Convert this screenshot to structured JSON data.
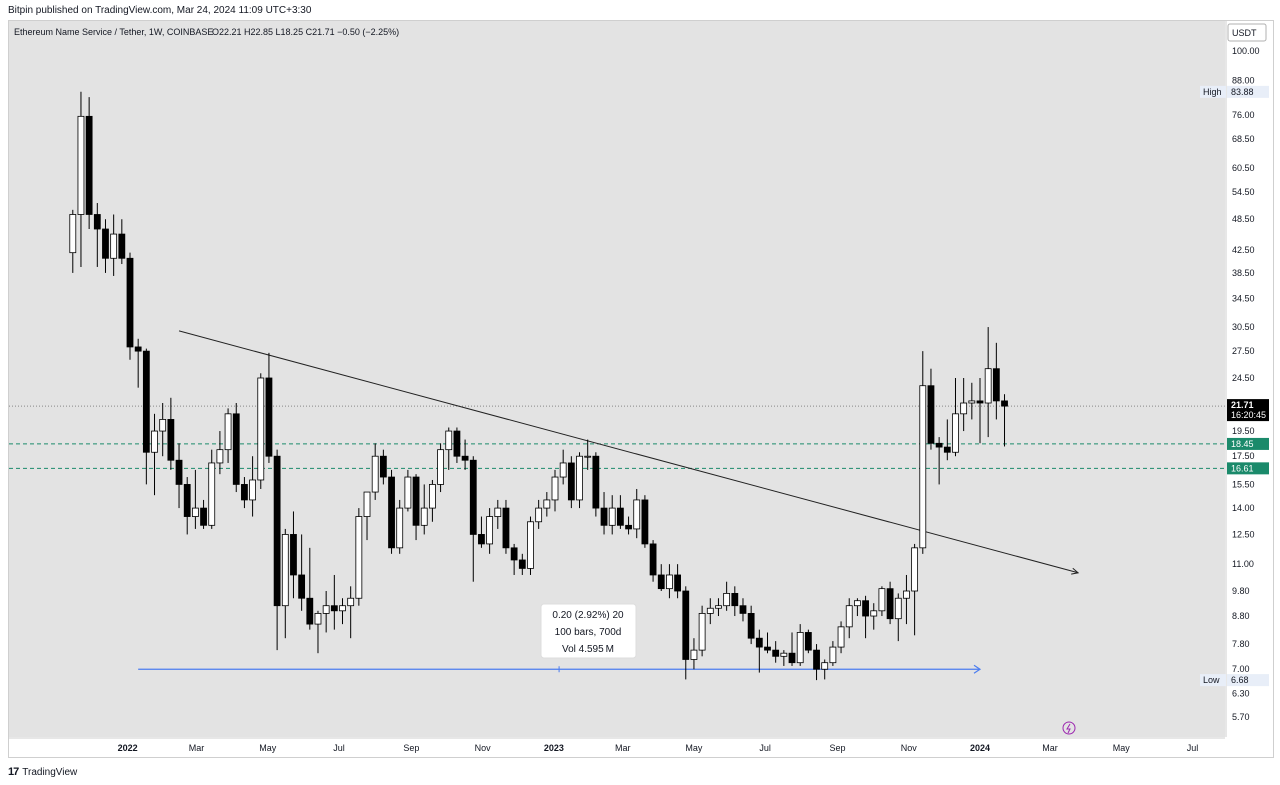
{
  "header": {
    "published": "Bitpin published on TradingView.com, Mar 24, 2024 11:09 UTC+3:30"
  },
  "footer": {
    "brand": "TradingView",
    "logo": "tv-logo-icon"
  },
  "chart_data": {
    "type": "candlestick",
    "title": "Ethereum Name Service / Tether, 1W, COINBASE",
    "ohlc_legend": "O22.21 H22.85 L18.25 C21.71 −0.50 (−2.25%)",
    "currency_label": "USDT",
    "y_scale": "log",
    "ylim": [
      5.2,
      110
    ],
    "y_ticks": [
      "100.00",
      "88.00",
      "76.00",
      "68.50",
      "60.50",
      "54.50",
      "48.50",
      "42.50",
      "38.50",
      "34.50",
      "30.50",
      "27.50",
      "24.50",
      "19.50",
      "17.50",
      "15.50",
      "14.00",
      "12.50",
      "11.00",
      "9.80",
      "8.80",
      "7.80",
      "7.00",
      "6.30",
      "5.70"
    ],
    "x_ticks": [
      "2022",
      "Mar",
      "May",
      "Jul",
      "Sep",
      "Nov",
      "2023",
      "Mar",
      "May",
      "Jul",
      "Sep",
      "Nov",
      "2024",
      "Mar",
      "May",
      "Jul"
    ],
    "x_tick_bold": [
      "2022",
      "2023",
      "2024"
    ],
    "price_labels": [
      {
        "kind": "high",
        "label": "High",
        "value": "83.88",
        "bg": "#e8eef8",
        "color": "#131722"
      },
      {
        "kind": "current",
        "value": "21.71",
        "sub": "16:20:45",
        "bg": "#000000",
        "color": "#ffffff"
      },
      {
        "kind": "level",
        "value": "18.45",
        "bg": "#1b8a6b",
        "color": "#ffffff"
      },
      {
        "kind": "level",
        "value": "16.61",
        "bg": "#1b8a6b",
        "color": "#ffffff"
      },
      {
        "kind": "low",
        "label": "Low",
        "value": "6.68",
        "bg": "#e8eef8",
        "color": "#131722"
      }
    ],
    "levels": [
      {
        "price": 21.71,
        "style": "dotted",
        "color": "#888888"
      },
      {
        "price": 18.45,
        "style": "dashed",
        "color": "#1b8a6b"
      },
      {
        "price": 16.61,
        "style": "dashed",
        "color": "#1b8a6b"
      }
    ],
    "candles": [
      {
        "o": 42.0,
        "h": 50.5,
        "l": 38.5,
        "c": 49.5
      },
      {
        "o": 49.5,
        "h": 83.9,
        "l": 39.5,
        "c": 75.5
      },
      {
        "o": 75.5,
        "h": 82.0,
        "l": 46.5,
        "c": 49.5
      },
      {
        "o": 49.5,
        "h": 52.0,
        "l": 39.5,
        "c": 46.5
      },
      {
        "o": 46.5,
        "h": 48.5,
        "l": 38.5,
        "c": 41.0
      },
      {
        "o": 41.0,
        "h": 49.5,
        "l": 38.0,
        "c": 45.5
      },
      {
        "o": 45.5,
        "h": 48.5,
        "l": 40.0,
        "c": 41.0
      },
      {
        "o": 41.0,
        "h": 42.0,
        "l": 26.5,
        "c": 28.0
      },
      {
        "o": 28.0,
        "h": 29.0,
        "l": 23.5,
        "c": 27.5
      },
      {
        "o": 27.5,
        "h": 27.8,
        "l": 15.5,
        "c": 17.8
      },
      {
        "o": 17.8,
        "h": 21.0,
        "l": 14.8,
        "c": 19.5
      },
      {
        "o": 19.5,
        "h": 22.0,
        "l": 17.5,
        "c": 20.5
      },
      {
        "o": 20.5,
        "h": 22.5,
        "l": 16.5,
        "c": 17.2
      },
      {
        "o": 17.2,
        "h": 18.5,
        "l": 14.0,
        "c": 15.5
      },
      {
        "o": 15.5,
        "h": 16.0,
        "l": 12.5,
        "c": 13.5
      },
      {
        "o": 13.5,
        "h": 16.5,
        "l": 12.8,
        "c": 14.0
      },
      {
        "o": 14.0,
        "h": 14.5,
        "l": 12.8,
        "c": 13.0
      },
      {
        "o": 13.0,
        "h": 18.0,
        "l": 12.8,
        "c": 17.0
      },
      {
        "o": 17.0,
        "h": 19.5,
        "l": 16.2,
        "c": 18.0
      },
      {
        "o": 18.0,
        "h": 21.5,
        "l": 17.0,
        "c": 21.0
      },
      {
        "o": 21.0,
        "h": 22.0,
        "l": 15.0,
        "c": 15.5
      },
      {
        "o": 15.5,
        "h": 16.0,
        "l": 14.0,
        "c": 14.5
      },
      {
        "o": 14.5,
        "h": 17.5,
        "l": 13.5,
        "c": 15.8
      },
      {
        "o": 15.8,
        "h": 25.0,
        "l": 15.2,
        "c": 24.5
      },
      {
        "o": 24.5,
        "h": 27.3,
        "l": 17.0,
        "c": 17.5
      },
      {
        "o": 17.5,
        "h": 18.0,
        "l": 7.6,
        "c": 9.2
      },
      {
        "o": 9.2,
        "h": 12.8,
        "l": 8.0,
        "c": 12.5
      },
      {
        "o": 12.5,
        "h": 13.8,
        "l": 9.5,
        "c": 10.5
      },
      {
        "o": 10.5,
        "h": 12.5,
        "l": 9.0,
        "c": 9.5
      },
      {
        "o": 9.5,
        "h": 11.8,
        "l": 8.3,
        "c": 8.5
      },
      {
        "o": 8.5,
        "h": 9.0,
        "l": 7.5,
        "c": 8.9
      },
      {
        "o": 8.9,
        "h": 9.8,
        "l": 8.2,
        "c": 9.2
      },
      {
        "o": 9.2,
        "h": 10.5,
        "l": 8.3,
        "c": 9.0
      },
      {
        "o": 9.0,
        "h": 9.5,
        "l": 8.5,
        "c": 9.2
      },
      {
        "o": 9.2,
        "h": 10.0,
        "l": 8.0,
        "c": 9.5
      },
      {
        "o": 9.5,
        "h": 14.0,
        "l": 9.2,
        "c": 13.5
      },
      {
        "o": 13.5,
        "h": 15.0,
        "l": 12.2,
        "c": 15.0
      },
      {
        "o": 15.0,
        "h": 18.5,
        "l": 14.5,
        "c": 17.5
      },
      {
        "o": 17.5,
        "h": 18.0,
        "l": 15.5,
        "c": 16.0
      },
      {
        "o": 16.0,
        "h": 16.5,
        "l": 11.5,
        "c": 11.8
      },
      {
        "o": 11.8,
        "h": 14.5,
        "l": 11.5,
        "c": 14.0
      },
      {
        "o": 14.0,
        "h": 16.5,
        "l": 13.8,
        "c": 16.0
      },
      {
        "o": 16.0,
        "h": 16.2,
        "l": 12.2,
        "c": 13.0
      },
      {
        "o": 13.0,
        "h": 15.5,
        "l": 12.5,
        "c": 14.0
      },
      {
        "o": 14.0,
        "h": 15.8,
        "l": 13.2,
        "c": 15.5
      },
      {
        "o": 15.5,
        "h": 18.5,
        "l": 15.0,
        "c": 18.0
      },
      {
        "o": 18.0,
        "h": 19.8,
        "l": 16.5,
        "c": 19.5
      },
      {
        "o": 19.5,
        "h": 19.8,
        "l": 17.0,
        "c": 17.5
      },
      {
        "o": 17.5,
        "h": 18.8,
        "l": 16.5,
        "c": 17.2
      },
      {
        "o": 17.2,
        "h": 17.5,
        "l": 10.2,
        "c": 12.5
      },
      {
        "o": 12.5,
        "h": 13.5,
        "l": 11.8,
        "c": 12.0
      },
      {
        "o": 12.0,
        "h": 14.0,
        "l": 11.5,
        "c": 13.5
      },
      {
        "o": 13.5,
        "h": 14.5,
        "l": 12.8,
        "c": 14.0
      },
      {
        "o": 14.0,
        "h": 14.5,
        "l": 11.5,
        "c": 11.8
      },
      {
        "o": 11.8,
        "h": 12.0,
        "l": 10.5,
        "c": 11.2
      },
      {
        "o": 11.2,
        "h": 11.5,
        "l": 10.5,
        "c": 10.8
      },
      {
        "o": 10.8,
        "h": 13.5,
        "l": 10.5,
        "c": 13.2
      },
      {
        "o": 13.2,
        "h": 14.5,
        "l": 12.8,
        "c": 14.0
      },
      {
        "o": 14.0,
        "h": 15.0,
        "l": 13.5,
        "c": 14.5
      },
      {
        "o": 14.5,
        "h": 16.5,
        "l": 13.8,
        "c": 16.0
      },
      {
        "o": 16.0,
        "h": 18.0,
        "l": 15.5,
        "c": 17.0
      },
      {
        "o": 17.0,
        "h": 17.5,
        "l": 14.0,
        "c": 14.5
      },
      {
        "o": 14.5,
        "h": 17.8,
        "l": 14.0,
        "c": 17.5
      },
      {
        "o": 17.5,
        "h": 18.8,
        "l": 16.5,
        "c": 17.5
      },
      {
        "o": 17.5,
        "h": 17.8,
        "l": 13.5,
        "c": 14.0
      },
      {
        "o": 14.0,
        "h": 15.0,
        "l": 12.5,
        "c": 13.0
      },
      {
        "o": 13.0,
        "h": 14.8,
        "l": 12.5,
        "c": 14.0
      },
      {
        "o": 14.0,
        "h": 14.8,
        "l": 12.8,
        "c": 13.0
      },
      {
        "o": 13.0,
        "h": 13.5,
        "l": 12.5,
        "c": 12.8
      },
      {
        "o": 12.8,
        "h": 15.2,
        "l": 12.3,
        "c": 14.5
      },
      {
        "o": 14.5,
        "h": 14.8,
        "l": 11.8,
        "c": 12.0
      },
      {
        "o": 12.0,
        "h": 12.2,
        "l": 10.2,
        "c": 10.5
      },
      {
        "o": 10.5,
        "h": 11.0,
        "l": 9.8,
        "c": 9.9
      },
      {
        "o": 9.9,
        "h": 11.0,
        "l": 9.5,
        "c": 10.5
      },
      {
        "o": 10.5,
        "h": 11.0,
        "l": 9.5,
        "c": 9.8
      },
      {
        "o": 9.8,
        "h": 10.0,
        "l": 6.7,
        "c": 7.3
      },
      {
        "o": 7.3,
        "h": 8.0,
        "l": 7.0,
        "c": 7.6
      },
      {
        "o": 7.6,
        "h": 9.2,
        "l": 7.4,
        "c": 8.9
      },
      {
        "o": 8.9,
        "h": 9.5,
        "l": 8.5,
        "c": 9.1
      },
      {
        "o": 9.1,
        "h": 9.5,
        "l": 8.8,
        "c": 9.2
      },
      {
        "o": 9.2,
        "h": 10.2,
        "l": 9.0,
        "c": 9.7
      },
      {
        "o": 9.7,
        "h": 10.0,
        "l": 8.8,
        "c": 9.2
      },
      {
        "o": 9.2,
        "h": 9.5,
        "l": 8.6,
        "c": 8.9
      },
      {
        "o": 8.9,
        "h": 9.2,
        "l": 7.8,
        "c": 8.0
      },
      {
        "o": 8.0,
        "h": 8.3,
        "l": 6.9,
        "c": 7.7
      },
      {
        "o": 7.7,
        "h": 8.2,
        "l": 7.5,
        "c": 7.6
      },
      {
        "o": 7.6,
        "h": 7.9,
        "l": 7.2,
        "c": 7.4
      },
      {
        "o": 7.4,
        "h": 7.6,
        "l": 7.1,
        "c": 7.5
      },
      {
        "o": 7.5,
        "h": 8.2,
        "l": 7.1,
        "c": 7.2
      },
      {
        "o": 7.2,
        "h": 8.5,
        "l": 7.1,
        "c": 8.2
      },
      {
        "o": 8.2,
        "h": 8.3,
        "l": 7.5,
        "c": 7.6
      },
      {
        "o": 7.6,
        "h": 7.8,
        "l": 6.68,
        "c": 7.0
      },
      {
        "o": 7.0,
        "h": 7.3,
        "l": 6.7,
        "c": 7.2
      },
      {
        "o": 7.2,
        "h": 7.9,
        "l": 7.1,
        "c": 7.7
      },
      {
        "o": 7.7,
        "h": 8.6,
        "l": 7.5,
        "c": 8.4
      },
      {
        "o": 8.4,
        "h": 9.5,
        "l": 8.0,
        "c": 9.2
      },
      {
        "o": 9.2,
        "h": 9.5,
        "l": 8.8,
        "c": 9.4
      },
      {
        "o": 9.4,
        "h": 9.6,
        "l": 8.0,
        "c": 8.8
      },
      {
        "o": 8.8,
        "h": 9.3,
        "l": 8.3,
        "c": 9.0
      },
      {
        "o": 9.0,
        "h": 10.0,
        "l": 8.8,
        "c": 9.9
      },
      {
        "o": 9.9,
        "h": 10.2,
        "l": 8.5,
        "c": 8.7
      },
      {
        "o": 8.7,
        "h": 9.7,
        "l": 7.9,
        "c": 9.5
      },
      {
        "o": 9.5,
        "h": 10.5,
        "l": 8.5,
        "c": 9.8
      },
      {
        "o": 9.8,
        "h": 12.0,
        "l": 8.1,
        "c": 11.8
      },
      {
        "o": 11.8,
        "h": 27.5,
        "l": 11.5,
        "c": 23.7
      },
      {
        "o": 23.7,
        "h": 25.5,
        "l": 18.0,
        "c": 18.5
      },
      {
        "o": 18.5,
        "h": 19.0,
        "l": 15.5,
        "c": 18.2
      },
      {
        "o": 18.2,
        "h": 20.5,
        "l": 17.2,
        "c": 17.8
      },
      {
        "o": 17.8,
        "h": 24.5,
        "l": 17.5,
        "c": 21.0
      },
      {
        "o": 21.0,
        "h": 24.5,
        "l": 19.5,
        "c": 22.0
      },
      {
        "o": 22.0,
        "h": 24.0,
        "l": 20.5,
        "c": 22.2
      },
      {
        "o": 22.2,
        "h": 24.5,
        "l": 18.5,
        "c": 22.0
      },
      {
        "o": 22.0,
        "h": 30.5,
        "l": 19.0,
        "c": 25.5
      },
      {
        "o": 25.5,
        "h": 28.5,
        "l": 20.5,
        "c": 22.2
      },
      {
        "o": 22.2,
        "h": 22.85,
        "l": 18.25,
        "c": 21.71
      }
    ],
    "trendline": {
      "x0": "2022-02-14",
      "p0": 30.0,
      "x1": "2024-03-25",
      "p1": 10.6
    },
    "support_line": {
      "x0": "2022-01-10",
      "x1": "2024-01-01",
      "price": 7.0
    },
    "measure_box": {
      "lines": [
        "0.20 (2.92%) 20",
        "100 bars, 700d",
        "Vol 4.595 M"
      ]
    },
    "grid": false,
    "chart_bg": "#e3e3e3",
    "colors": {
      "up": "#ffffff",
      "down": "#000000",
      "outline": "#000000",
      "support": "#4c7df0",
      "trend": "#222222"
    }
  }
}
